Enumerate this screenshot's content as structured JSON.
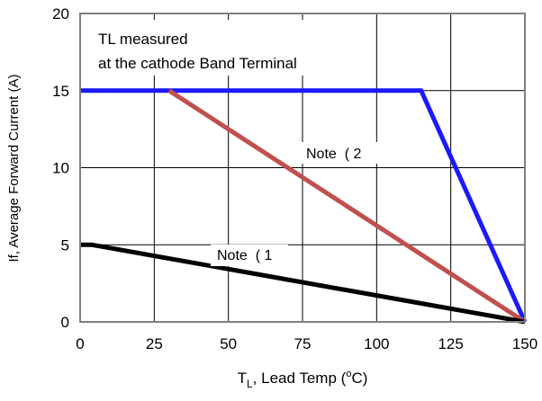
{
  "chart_data": {
    "type": "line",
    "title": "",
    "xlabel_main": "T",
    "xlabel_sub": "L",
    "xlabel_rest": ", Lead Temp (",
    "xlabel_sup": "o",
    "xlabel_end": "C)",
    "ylabel": "If, Average Forward Current (A)",
    "xlim": [
      0,
      150
    ],
    "ylim": [
      0,
      20
    ],
    "x_ticks": [
      "0",
      "25",
      "50",
      "75",
      "100",
      "125",
      "150"
    ],
    "y_ticks": [
      "0",
      "5",
      "10",
      "15",
      "20"
    ],
    "x_tick_values": [
      0,
      25,
      50,
      75,
      100,
      125,
      150
    ],
    "y_tick_values": [
      0,
      5,
      10,
      15,
      20
    ],
    "grid": true,
    "colors": {
      "blue": "#1a1aff",
      "red": "#c0504d",
      "black": "#000000",
      "grid": "#000000"
    },
    "series": [
      {
        "color": "#1a1aff",
        "x": [
          0,
          115,
          150
        ],
        "y": [
          15,
          15,
          0
        ]
      },
      {
        "color": "#c0504d",
        "x": [
          30,
          150
        ],
        "y": [
          15,
          0
        ]
      },
      {
        "color": "#000000",
        "x": [
          0,
          4,
          150
        ],
        "y": [
          5,
          5,
          0
        ]
      }
    ],
    "annotations": {
      "box_line1": "TL measured",
      "box_line2": "at the cathode Band Terminal",
      "note2": "Note  ( 2",
      "note1": "Note  ( 1"
    }
  }
}
